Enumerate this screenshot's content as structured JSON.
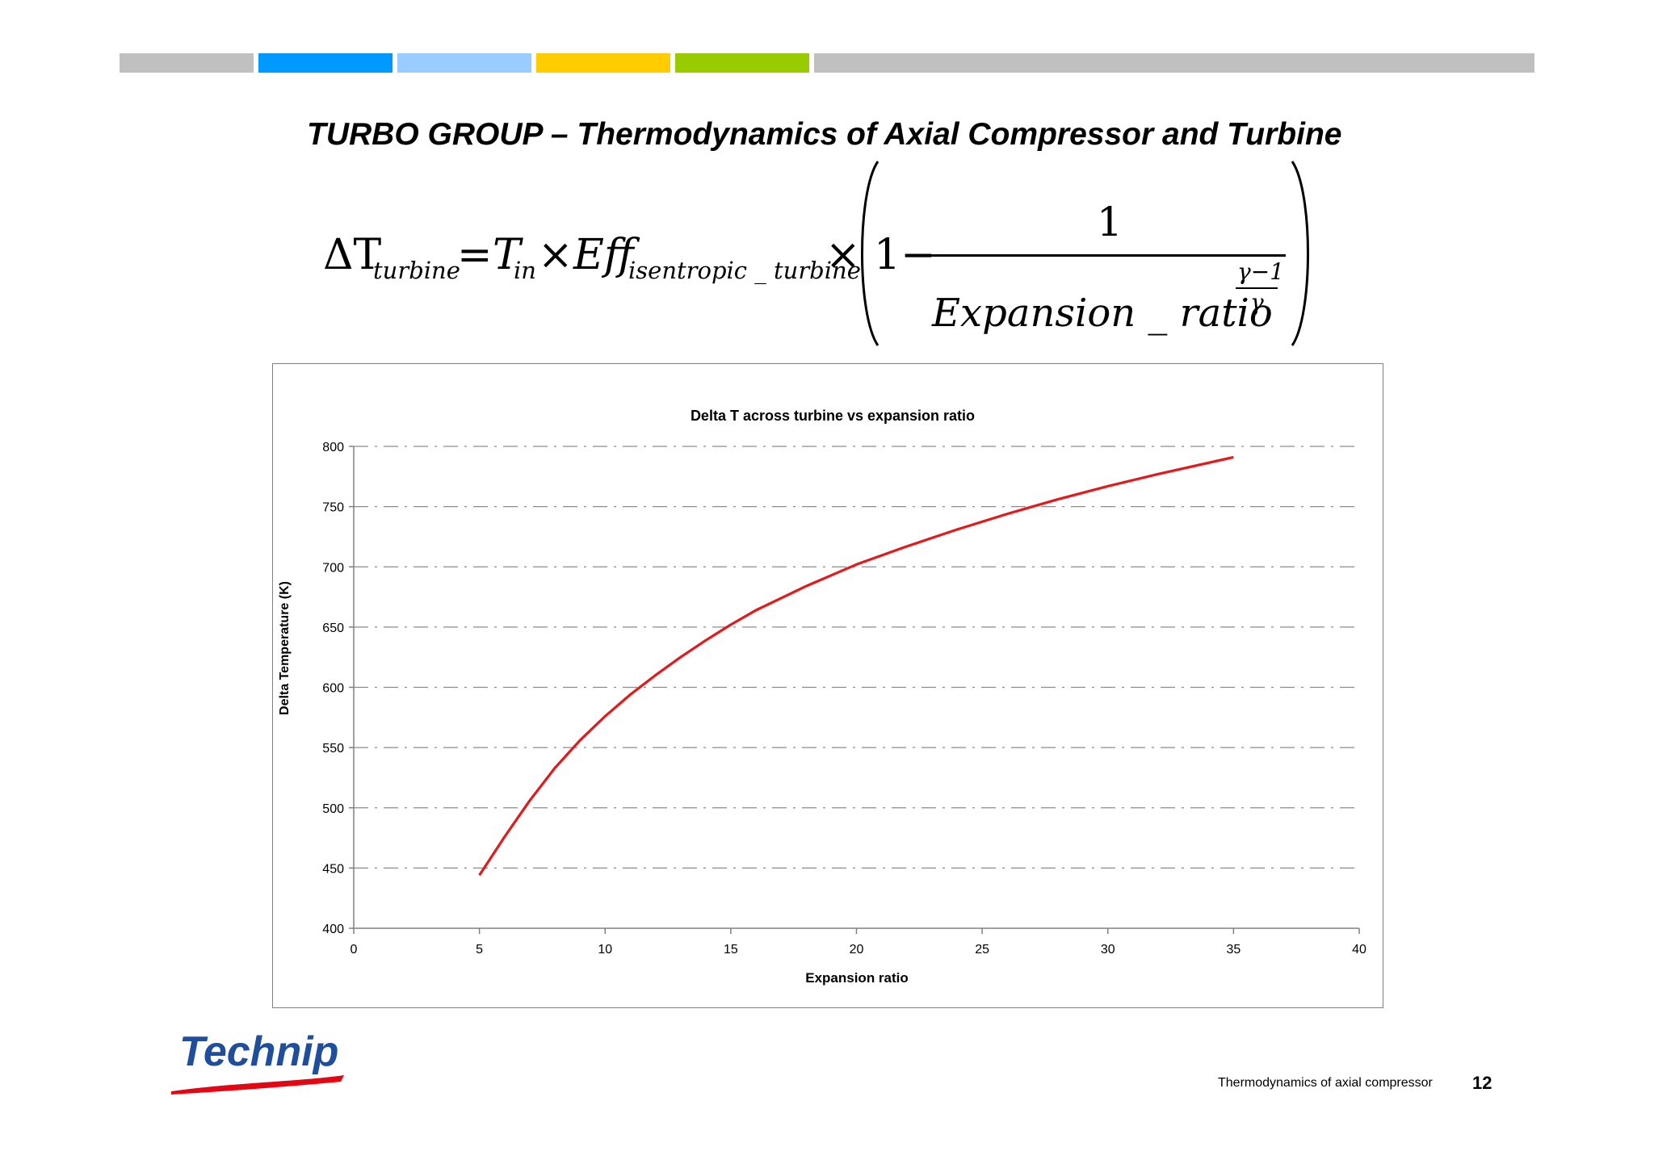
{
  "header": {
    "bar_colors": [
      "#c0c0c0",
      "#0099ff",
      "#99ccff",
      "#ffcc00",
      "#99cc00",
      "#c0c0c0"
    ]
  },
  "slide": {
    "title": "TURBO GROUP – Thermodynamics of Axial Compressor and Turbine"
  },
  "formula": {
    "delta_t": "ΔT",
    "turbine_sub": "turbine",
    "equals": "=",
    "t_in": "T",
    "in_sub": "in",
    "times": "×",
    "eff": "Eff",
    "eff_sub": "isentropic _ turbine",
    "one_minus": "1−",
    "numerator": "1",
    "denominator": "Expansion _ ratio",
    "exponent_num": "γ−1",
    "exponent_den": "γ"
  },
  "chart_data": {
    "type": "line",
    "title": "Delta T across turbine vs expansion ratio",
    "xlabel": "Expansion ratio",
    "ylabel": "Delta Temperature (K)",
    "xlim": [
      0,
      40
    ],
    "ylim": [
      400,
      800
    ],
    "xticks": [
      0,
      5,
      10,
      15,
      20,
      25,
      30,
      35,
      40
    ],
    "yticks": [
      400,
      450,
      500,
      550,
      600,
      650,
      700,
      750,
      800
    ],
    "grid": "horizontal dashed",
    "series": [
      {
        "color": "#e31a1c",
        "x": [
          5,
          5.5,
          6,
          7,
          8,
          9,
          10,
          11,
          12,
          13,
          14,
          15,
          16,
          17,
          18,
          19,
          20,
          22,
          24,
          26,
          28,
          30,
          32,
          35
        ],
        "y": [
          444,
          460,
          476,
          506,
          533,
          556,
          576,
          594,
          610,
          625,
          639,
          652,
          664,
          674,
          684,
          693,
          702,
          717,
          731,
          744,
          756,
          767,
          777,
          791
        ]
      }
    ]
  },
  "footer": {
    "logo_text": "Technip",
    "logo_color": "#1f4e9c",
    "swoosh_color": "#e30613",
    "caption": "Thermodynamics of  axial compressor",
    "page_number": "12"
  }
}
